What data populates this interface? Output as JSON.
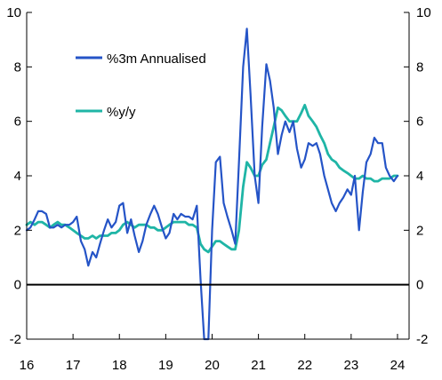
{
  "chart_data": {
    "type": "line",
    "title": "",
    "xlabel": "",
    "ylabel": "",
    "ylim": [
      -2,
      10
    ],
    "xlim": [
      2016,
      2024.25
    ],
    "y_ticks": [
      "-2",
      "0",
      "2",
      "4",
      "6",
      "8",
      "10"
    ],
    "y_ticks_right": [
      "-2",
      "0",
      "2",
      "4",
      "6",
      "8",
      "10"
    ],
    "x_ticks": [
      {
        "label": "16",
        "value": 2016
      },
      {
        "label": "17",
        "value": 2017
      },
      {
        "label": "18",
        "value": 2018
      },
      {
        "label": "19",
        "value": 2019
      },
      {
        "label": "20",
        "value": 2020
      },
      {
        "label": "21",
        "value": 2021
      },
      {
        "label": "22",
        "value": 2022
      },
      {
        "label": "23",
        "value": 2023
      },
      {
        "label": "24",
        "value": 2024
      }
    ],
    "legend_position": "top-left",
    "zero_line": true,
    "series": [
      {
        "name": "%3m Annualised",
        "color": "#2554c7",
        "x": [
          2016.0,
          2016.08,
          2016.17,
          2016.25,
          2016.33,
          2016.42,
          2016.5,
          2016.58,
          2016.67,
          2016.75,
          2016.83,
          2016.92,
          2017.0,
          2017.08,
          2017.17,
          2017.25,
          2017.33,
          2017.42,
          2017.5,
          2017.58,
          2017.67,
          2017.75,
          2017.83,
          2017.92,
          2018.0,
          2018.08,
          2018.17,
          2018.25,
          2018.33,
          2018.42,
          2018.5,
          2018.58,
          2018.67,
          2018.75,
          2018.83,
          2018.92,
          2019.0,
          2019.08,
          2019.17,
          2019.25,
          2019.33,
          2019.42,
          2019.5,
          2019.58,
          2019.67,
          2019.75,
          2019.83,
          2019.92,
          2020.0,
          2020.08,
          2020.17,
          2020.25,
          2020.33,
          2020.42,
          2020.5,
          2020.58,
          2020.67,
          2020.75,
          2020.83,
          2020.92,
          2021.0,
          2021.08,
          2021.17,
          2021.25,
          2021.33,
          2021.42,
          2021.5,
          2021.58,
          2021.67,
          2021.75,
          2021.83,
          2021.92,
          2022.0,
          2022.08,
          2022.17,
          2022.25,
          2022.33,
          2022.42,
          2022.5,
          2022.58,
          2022.67,
          2022.75,
          2022.83,
          2022.92,
          2023.0,
          2023.08,
          2023.17,
          2023.25,
          2023.33,
          2023.42,
          2023.5,
          2023.58,
          2023.67,
          2023.75,
          2023.83,
          2023.92,
          2024.0
        ],
        "values": [
          2.0,
          2.1,
          2.4,
          2.7,
          2.7,
          2.6,
          2.1,
          2.1,
          2.2,
          2.1,
          2.2,
          2.2,
          2.3,
          2.5,
          1.6,
          1.3,
          0.7,
          1.2,
          1.0,
          1.5,
          2.0,
          2.4,
          2.1,
          2.3,
          2.9,
          3.0,
          1.9,
          2.4,
          1.8,
          1.2,
          1.6,
          2.2,
          2.6,
          2.9,
          2.6,
          2.1,
          1.7,
          1.9,
          2.6,
          2.4,
          2.6,
          2.5,
          2.5,
          2.4,
          2.9,
          0.2,
          -2.0,
          -2.0,
          2.0,
          4.5,
          4.7,
          3.0,
          2.5,
          2.0,
          1.5,
          4.5,
          8.0,
          9.4,
          7.0,
          4.0,
          3.0,
          5.8,
          8.1,
          7.5,
          6.5,
          4.8,
          5.5,
          6.0,
          5.6,
          6.0,
          5.0,
          4.3,
          4.6,
          5.2,
          5.1,
          5.2,
          4.8,
          4.0,
          3.5,
          3.0,
          2.7,
          3.0,
          3.2,
          3.5,
          3.3,
          4.0,
          2.0,
          3.4,
          4.5,
          4.8,
          5.4,
          5.2,
          5.2,
          4.3,
          4.0,
          3.8,
          4.0
        ]
      },
      {
        "name": "%y/y",
        "color": "#1fb5a6",
        "x": [
          2016.0,
          2016.08,
          2016.17,
          2016.25,
          2016.33,
          2016.42,
          2016.5,
          2016.58,
          2016.67,
          2016.75,
          2016.83,
          2016.92,
          2017.0,
          2017.08,
          2017.17,
          2017.25,
          2017.33,
          2017.42,
          2017.5,
          2017.58,
          2017.67,
          2017.75,
          2017.83,
          2017.92,
          2018.0,
          2018.08,
          2018.17,
          2018.25,
          2018.33,
          2018.42,
          2018.5,
          2018.58,
          2018.67,
          2018.75,
          2018.83,
          2018.92,
          2019.0,
          2019.08,
          2019.17,
          2019.25,
          2019.33,
          2019.42,
          2019.5,
          2019.58,
          2019.67,
          2019.75,
          2019.83,
          2019.92,
          2020.0,
          2020.08,
          2020.17,
          2020.25,
          2020.33,
          2020.42,
          2020.5,
          2020.58,
          2020.67,
          2020.75,
          2020.83,
          2020.92,
          2021.0,
          2021.08,
          2021.17,
          2021.25,
          2021.33,
          2021.42,
          2021.5,
          2021.58,
          2021.67,
          2021.75,
          2021.83,
          2021.92,
          2022.0,
          2022.08,
          2022.17,
          2022.25,
          2022.33,
          2022.42,
          2022.5,
          2022.58,
          2022.67,
          2022.75,
          2022.83,
          2022.92,
          2023.0,
          2023.08,
          2023.17,
          2023.25,
          2023.33,
          2023.42,
          2023.5,
          2023.58,
          2023.67,
          2023.75,
          2023.83,
          2023.92,
          2024.0
        ],
        "values": [
          2.2,
          2.3,
          2.2,
          2.3,
          2.3,
          2.2,
          2.1,
          2.2,
          2.3,
          2.2,
          2.2,
          2.1,
          2.0,
          1.9,
          1.8,
          1.7,
          1.7,
          1.8,
          1.7,
          1.8,
          1.8,
          1.8,
          1.9,
          1.9,
          2.0,
          2.2,
          2.3,
          2.2,
          2.1,
          2.2,
          2.2,
          2.2,
          2.1,
          2.1,
          2.0,
          2.0,
          2.1,
          2.2,
          2.3,
          2.3,
          2.3,
          2.3,
          2.2,
          2.2,
          2.1,
          1.5,
          1.3,
          1.2,
          1.4,
          1.6,
          1.6,
          1.5,
          1.4,
          1.3,
          1.3,
          2.0,
          3.6,
          4.5,
          4.3,
          4.0,
          4.0,
          4.4,
          4.6,
          5.2,
          5.8,
          6.5,
          6.4,
          6.2,
          6.0,
          6.0,
          6.0,
          6.3,
          6.6,
          6.2,
          6.0,
          5.8,
          5.5,
          5.2,
          4.8,
          4.6,
          4.5,
          4.3,
          4.2,
          4.1,
          4.0,
          3.9,
          3.9,
          4.0,
          3.9,
          3.9,
          3.8,
          3.8,
          3.9,
          3.9,
          3.9,
          4.0,
          4.0
        ]
      }
    ]
  }
}
